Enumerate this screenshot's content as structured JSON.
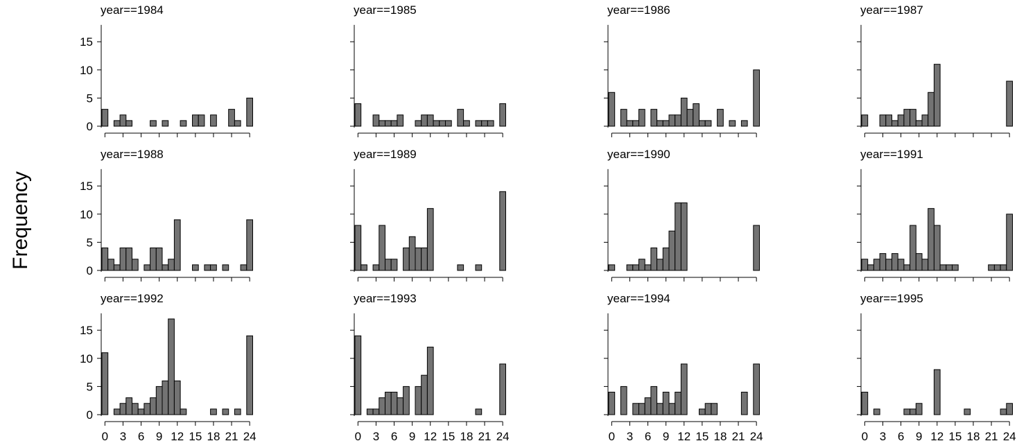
{
  "chart_data": {
    "type": "bar",
    "ylabel": "Frequency",
    "xlabel": "",
    "ylim": [
      0,
      18
    ],
    "y_ticks": [
      "0",
      "5",
      "10",
      "15"
    ],
    "x_ticks": [
      "0",
      "3",
      "6",
      "9",
      "12",
      "15",
      "18",
      "21",
      "24"
    ],
    "bin_starts": [
      0,
      1,
      2,
      3,
      4,
      5,
      6,
      7,
      8,
      9,
      10,
      11,
      12,
      13,
      14,
      15,
      16,
      17,
      18,
      19,
      20,
      21,
      22,
      23,
      24
    ],
    "bar_color": "#737373",
    "panels": [
      {
        "title": "year==1984",
        "values": [
          3,
          0,
          1,
          2,
          1,
          0,
          0,
          0,
          1,
          0,
          1,
          0,
          0,
          1,
          0,
          2,
          2,
          0,
          2,
          0,
          0,
          3,
          1,
          0,
          5
        ]
      },
      {
        "title": "year==1985",
        "values": [
          4,
          0,
          0,
          2,
          1,
          1,
          1,
          2,
          0,
          0,
          1,
          2,
          2,
          1,
          1,
          1,
          0,
          3,
          1,
          0,
          1,
          1,
          1,
          0,
          4
        ]
      },
      {
        "title": "year==1986",
        "values": [
          6,
          0,
          3,
          1,
          1,
          3,
          0,
          3,
          1,
          1,
          2,
          2,
          5,
          3,
          4,
          1,
          1,
          0,
          3,
          0,
          1,
          0,
          1,
          0,
          10
        ]
      },
      {
        "title": "year==1987",
        "values": [
          2,
          0,
          0,
          2,
          2,
          1,
          2,
          3,
          3,
          1,
          2,
          6,
          11,
          0,
          0,
          0,
          0,
          0,
          0,
          0,
          0,
          0,
          0,
          0,
          8
        ]
      },
      {
        "title": "year==1988",
        "values": [
          4,
          2,
          1,
          4,
          4,
          2,
          0,
          1,
          4,
          4,
          1,
          2,
          9,
          0,
          0,
          1,
          0,
          1,
          1,
          0,
          1,
          0,
          0,
          1,
          9
        ]
      },
      {
        "title": "year==1989",
        "values": [
          8,
          1,
          0,
          1,
          8,
          2,
          2,
          0,
          4,
          6,
          4,
          4,
          11,
          0,
          0,
          0,
          0,
          1,
          0,
          0,
          1,
          0,
          0,
          0,
          14
        ]
      },
      {
        "title": "year==1990",
        "values": [
          1,
          0,
          0,
          1,
          1,
          2,
          1,
          4,
          2,
          4,
          7,
          12,
          12,
          0,
          0,
          0,
          0,
          0,
          0,
          0,
          0,
          0,
          0,
          0,
          8
        ]
      },
      {
        "title": "year==1991",
        "values": [
          2,
          1,
          2,
          3,
          2,
          3,
          2,
          1,
          8,
          3,
          2,
          11,
          8,
          1,
          1,
          1,
          0,
          0,
          0,
          0,
          0,
          1,
          1,
          1,
          10
        ]
      },
      {
        "title": "year==1992",
        "values": [
          11,
          0,
          1,
          2,
          3,
          2,
          1,
          2,
          3,
          5,
          6,
          17,
          6,
          1,
          0,
          0,
          0,
          0,
          1,
          0,
          1,
          0,
          1,
          0,
          14
        ]
      },
      {
        "title": "year==1993",
        "values": [
          14,
          0,
          1,
          1,
          3,
          4,
          4,
          3,
          5,
          0,
          5,
          7,
          12,
          0,
          0,
          0,
          0,
          0,
          0,
          0,
          1,
          0,
          0,
          0,
          9
        ]
      },
      {
        "title": "year==1994",
        "values": [
          4,
          0,
          5,
          0,
          2,
          2,
          3,
          5,
          2,
          4,
          2,
          4,
          9,
          0,
          0,
          1,
          2,
          2,
          0,
          0,
          0,
          0,
          4,
          0,
          9
        ]
      },
      {
        "title": "year==1995",
        "values": [
          4,
          0,
          1,
          0,
          0,
          0,
          0,
          1,
          1,
          2,
          0,
          0,
          8,
          0,
          0,
          0,
          0,
          1,
          0,
          0,
          0,
          0,
          0,
          1,
          2
        ]
      }
    ]
  }
}
